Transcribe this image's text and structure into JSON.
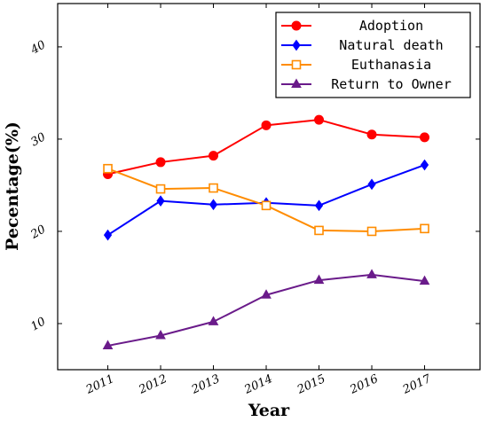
{
  "chart_data": {
    "type": "line",
    "xlabel": "Year",
    "ylabel": "Pecentage(%)",
    "x": [
      "2011",
      "2012",
      "2013",
      "2014",
      "2015",
      "2016",
      "2017"
    ],
    "ylim": [
      5.0,
      44.7
    ],
    "xlim": [
      2010.05,
      2018.05
    ],
    "yticks": [
      "10",
      "20",
      "30",
      "40"
    ],
    "grid": false,
    "legend_position": "top-right",
    "series": [
      {
        "name": "Adoption",
        "color": "#ff0000",
        "marker": "circle",
        "values": [
          26.2,
          27.5,
          28.2,
          31.5,
          32.1,
          30.5,
          30.2
        ]
      },
      {
        "name": "Natural death",
        "color": "#0000ff",
        "marker": "diamond",
        "values": [
          19.6,
          23.3,
          22.9,
          23.1,
          22.8,
          25.1,
          27.2
        ]
      },
      {
        "name": "Euthanasia",
        "color": "#ff8c00",
        "marker": "square-open",
        "values": [
          26.8,
          24.6,
          24.7,
          22.8,
          20.1,
          20.0,
          20.3
        ]
      },
      {
        "name": "Return to Owner",
        "color": "#6a1b8a",
        "marker": "triangle",
        "values": [
          7.6,
          8.7,
          10.2,
          13.1,
          14.7,
          15.3,
          14.6
        ]
      }
    ]
  }
}
